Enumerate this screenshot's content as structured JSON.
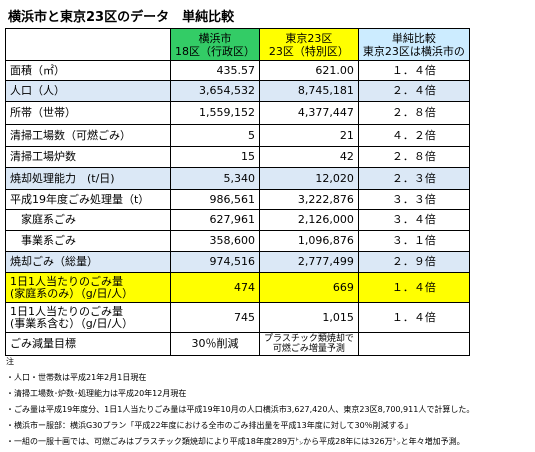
{
  "title": "横浜市と東京23区のデータ　単純比較",
  "table": {
    "header": [
      [
        "横浜市",
        "18区（行政区）"
      ],
      [
        "東京23区",
        "23区（特別区）"
      ],
      [
        "単純比較",
        "東京23区は横浜市の"
      ]
    ],
    "rows": [
      [
        "面積（㎡）",
        "435.57",
        "621.00",
        "１．４倍"
      ],
      [
        "人口（人）",
        "3,654,532",
        "8,745,181",
        "２．４倍"
      ],
      [
        "所帯（世帯）",
        "1,559,152",
        "4,377,447",
        "２．８倍"
      ],
      [
        "清掃工場数（可燃ごみ）",
        "5",
        "21",
        "４．２倍"
      ],
      [
        "清掃工場炉数",
        "15",
        "42",
        "２．８倍"
      ],
      [
        "焼却処理能力　(t/日)",
        "5,340",
        "12,020",
        "２．３倍"
      ],
      [
        "平成19年度ごみ処理量（t）",
        "986,561",
        "3,222,876",
        "３．３倍"
      ],
      [
        "　家庭系ごみ",
        "627,961",
        "2,126,000",
        "３．４倍"
      ],
      [
        "　事業系ごみ",
        "358,600",
        "1,096,876",
        "３．１倍"
      ],
      [
        "焼却ごみ（総量）",
        "974,516",
        "2,777,499",
        "２．９倍"
      ],
      [
        [
          "1日1人当たりのごみ量",
          "(家庭系のみ）（g/日/人）"
        ],
        "474",
        "669",
        "１．４倍"
      ],
      [
        [
          "1日1人当たりのごみ量",
          "(事業系含む）（g/日/人）"
        ],
        "745",
        "1,015",
        "１．４倍"
      ],
      [
        "ごみ減量目標",
        "30％削減",
        [
          "プラスチック類焼却で",
          "可燃ごみ増量予測"
        ]
      ]
    ]
  },
  "notes": {
    "heading": "注",
    "items": [
      "・人口・世帯数は平成21年2月1日現在",
      "・清掃工場数･炉数･処理能力は平成20年12月現在",
      "・ごみ量は平成19年度分、1日1人当たりごみ量は平成19年10月の人口横浜市3,627,420人、東京23区8,700,911人で計算した。",
      "・横浜市ー服部：横浜G30プラン「平成22年度における全市のごみ排出量を平成13年度に対して30％削減する」",
      "・一組の一服十画では、可燃ごみはプラスチック類焼却により平成18年度289万㌧から平成28年には326万㌧と年々増加予測。"
    ]
  }
}
